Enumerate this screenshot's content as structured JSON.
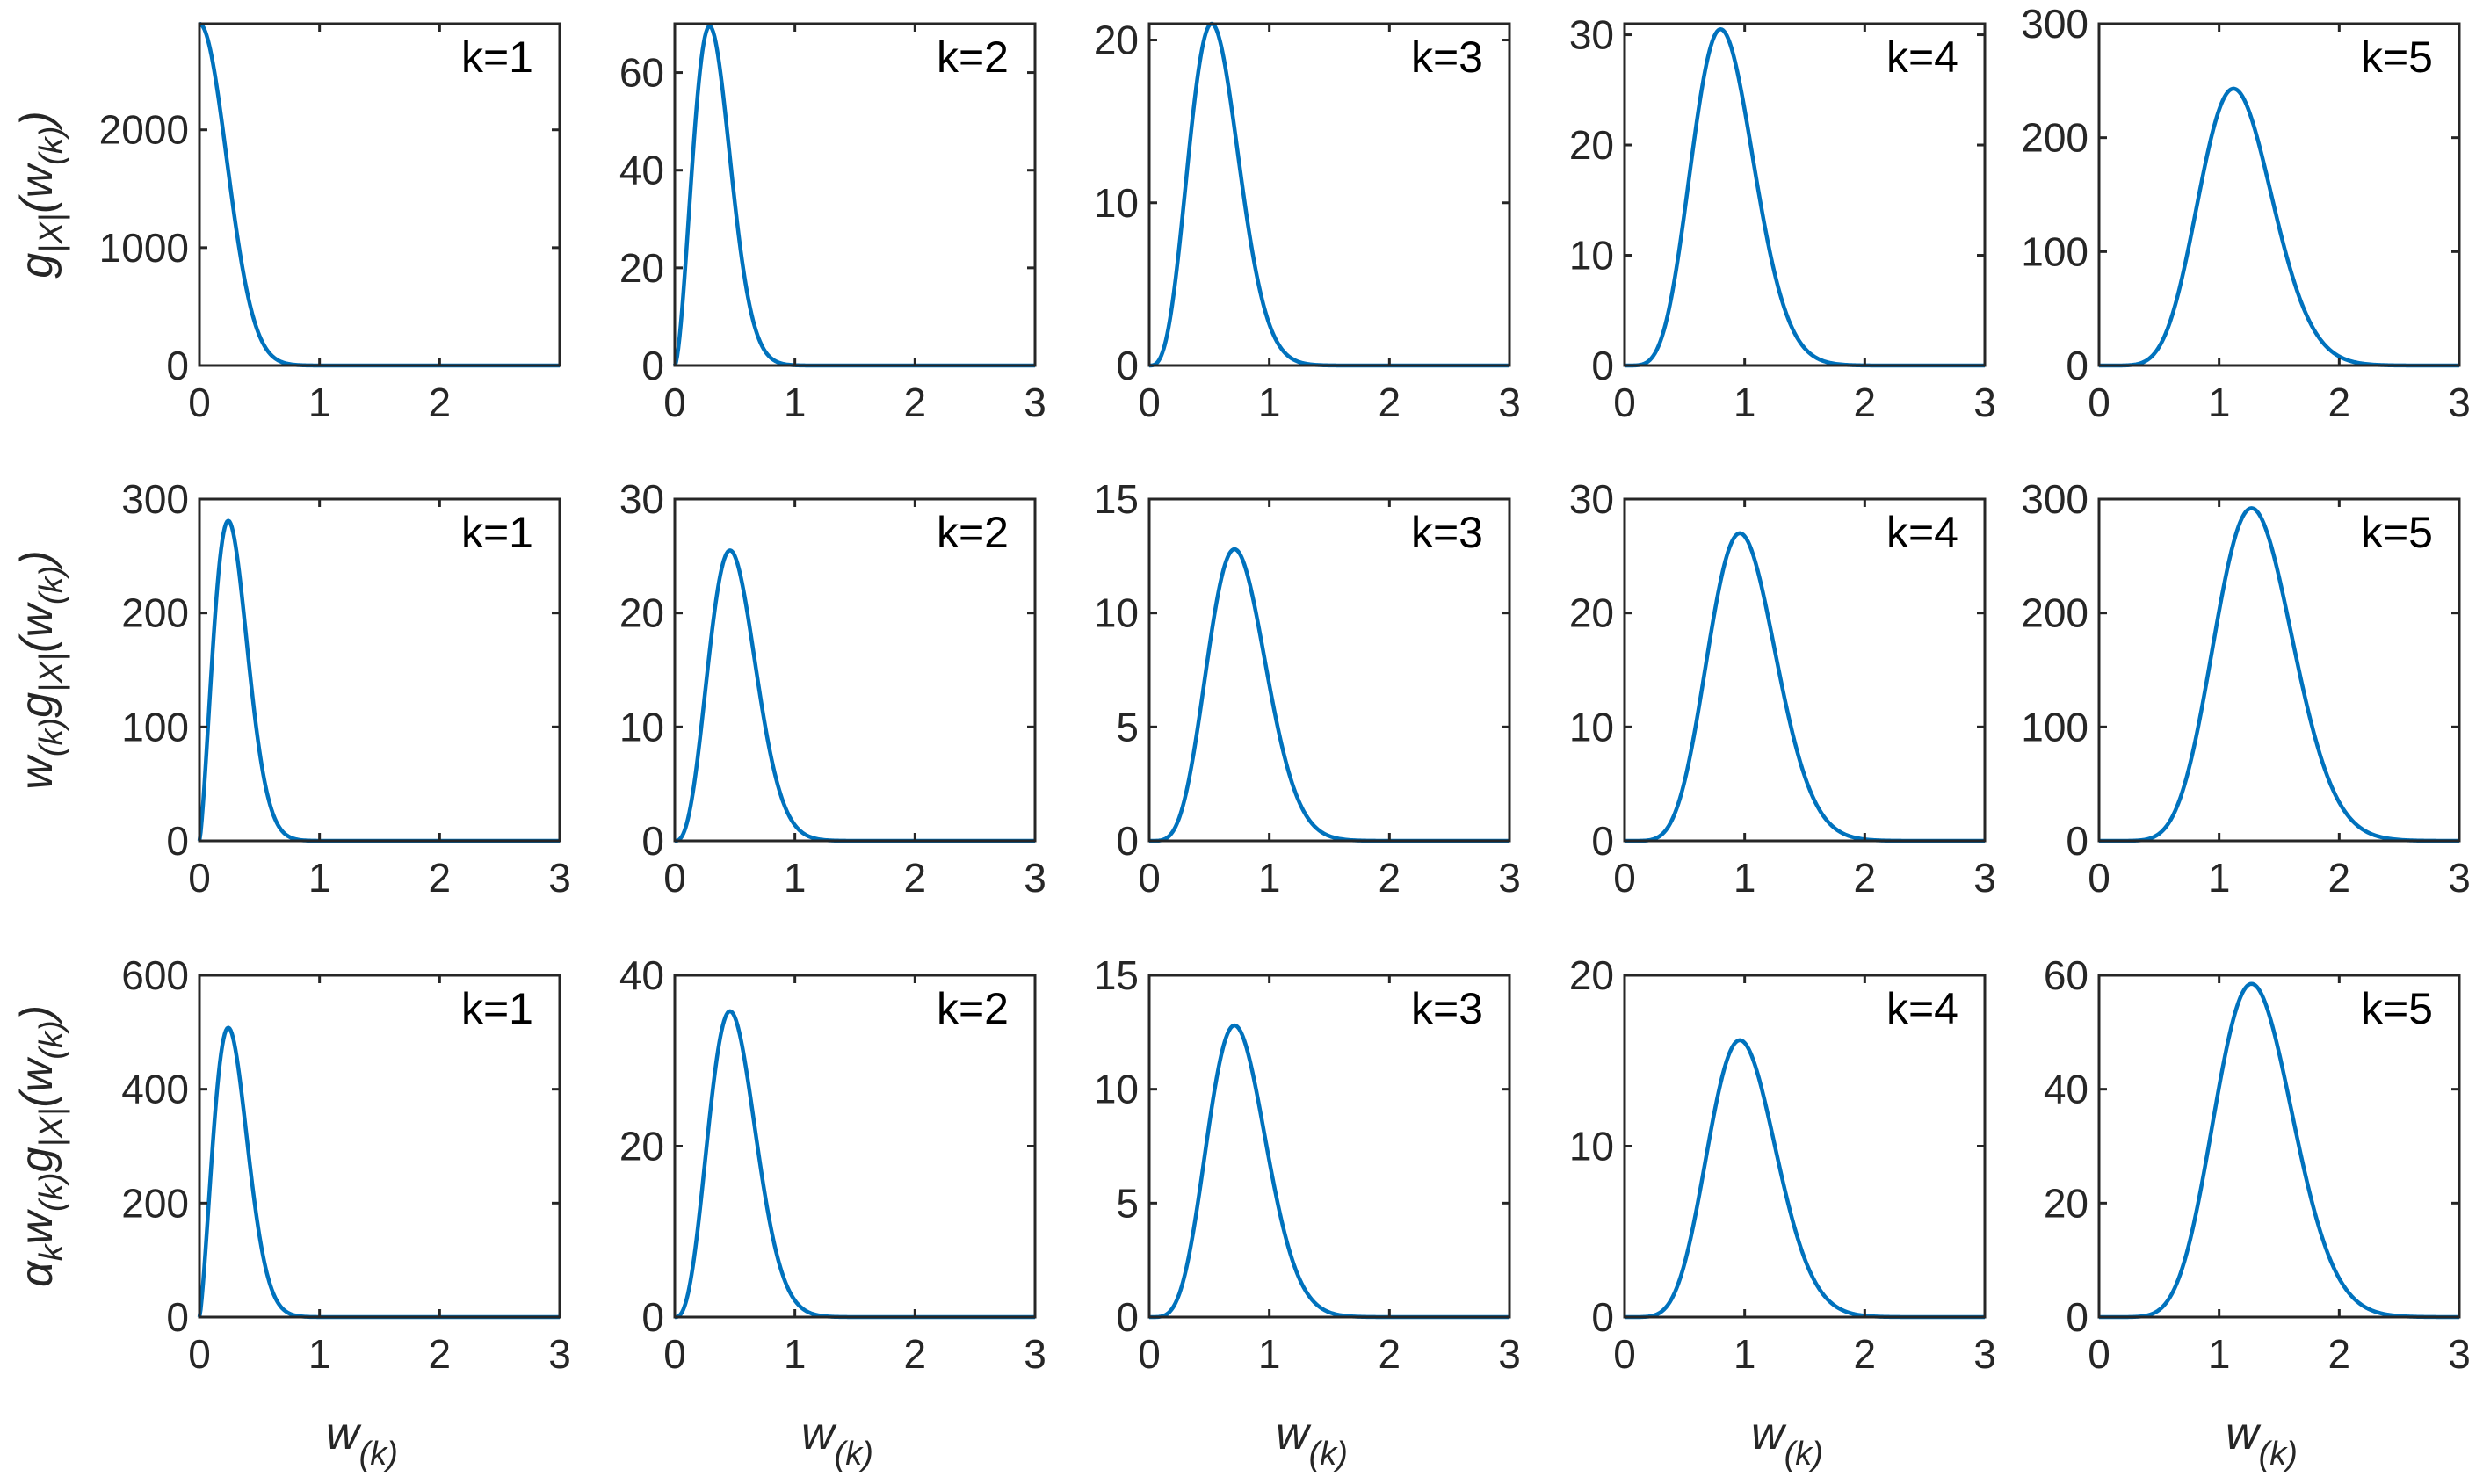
{
  "chart_data": {
    "type": "line",
    "layout": {
      "rows": 3,
      "cols": 5
    },
    "line_color": "#0072BD",
    "x_tick_labels": [
      "0",
      "1",
      "2",
      "3"
    ],
    "x_axis_label": {
      "main": "w",
      "sub": "(k)"
    },
    "rows": [
      {
        "ylabel": {
          "parts": [
            {
              "t": "g",
              "sub": false
            },
            {
              "t": "|X|",
              "sub": true
            },
            {
              "t": "(w",
              "sub": false
            },
            {
              "t": "(k)",
              "sub": true
            },
            {
              "t": ")",
              "sub": false
            }
          ]
        },
        "panels": [
          {
            "label": "k=1",
            "xlim": [
              0,
              3
            ],
            "ylim": [
              0,
              2900
            ],
            "xticks": [
              0,
              1,
              2
            ],
            "yticks": [
              0,
              1000,
              2000
            ],
            "ytick_labels": [
              "0",
              "1000",
              "2000"
            ],
            "peak_x": 0,
            "peak_y": 2900
          },
          {
            "label": "k=2",
            "xlim": [
              0,
              3
            ],
            "ylim": [
              0,
              70
            ],
            "xticks": [
              0,
              1,
              2,
              3
            ],
            "yticks": [
              0,
              20,
              40,
              60
            ],
            "ytick_labels": [
              "0",
              "20",
              "40",
              "60"
            ],
            "peak_x": 0.29,
            "peak_y": 69.5
          },
          {
            "label": "k=3",
            "xlim": [
              0,
              3
            ],
            "ylim": [
              0,
              21
            ],
            "xticks": [
              0,
              1,
              2,
              3
            ],
            "yticks": [
              0,
              10,
              20
            ],
            "ytick_labels": [
              "0",
              "10",
              "20"
            ],
            "peak_x": 0.52,
            "peak_y": 21
          },
          {
            "label": "k=4",
            "xlim": [
              0,
              3
            ],
            "ylim": [
              0,
              31
            ],
            "xticks": [
              0,
              1,
              2,
              3
            ],
            "yticks": [
              0,
              10,
              20,
              30
            ],
            "ytick_labels": [
              "0",
              "10",
              "20",
              "30"
            ],
            "peak_x": 0.8,
            "peak_y": 30.5
          },
          {
            "label": "k=5",
            "xlim": [
              0,
              3
            ],
            "ylim": [
              0,
              300
            ],
            "xticks": [
              0,
              1,
              2,
              3
            ],
            "yticks": [
              0,
              100,
              200,
              300
            ],
            "ytick_labels": [
              "0",
              "100",
              "200",
              "300"
            ],
            "peak_x": 1.12,
            "peak_y": 243
          }
        ]
      },
      {
        "ylabel": {
          "parts": [
            {
              "t": "w",
              "sub": false
            },
            {
              "t": "(k)",
              "sub": true
            },
            {
              "t": "g",
              "sub": false
            },
            {
              "t": "|X|",
              "sub": true
            },
            {
              "t": "(w",
              "sub": false
            },
            {
              "t": "(k)",
              "sub": true
            },
            {
              "t": ")",
              "sub": false
            }
          ]
        },
        "panels": [
          {
            "label": "k=1",
            "xlim": [
              0,
              3
            ],
            "ylim": [
              0,
              300
            ],
            "xticks": [
              0,
              1,
              2,
              3
            ],
            "yticks": [
              0,
              100,
              200,
              300
            ],
            "ytick_labels": [
              "0",
              "100",
              "200",
              "300"
            ],
            "peak_x": 0.24,
            "peak_y": 281
          },
          {
            "label": "k=2",
            "xlim": [
              0,
              3
            ],
            "ylim": [
              0,
              30
            ],
            "xticks": [
              0,
              1,
              2,
              3
            ],
            "yticks": [
              0,
              10,
              20,
              30
            ],
            "ytick_labels": [
              "0",
              "10",
              "20",
              "30"
            ],
            "peak_x": 0.46,
            "peak_y": 25.5
          },
          {
            "label": "k=3",
            "xlim": [
              0,
              3
            ],
            "ylim": [
              0,
              15
            ],
            "xticks": [
              0,
              1,
              2,
              3
            ],
            "yticks": [
              0,
              5,
              10,
              15
            ],
            "ytick_labels": [
              "0",
              "5",
              "10",
              "15"
            ],
            "peak_x": 0.71,
            "peak_y": 12.8
          },
          {
            "label": "k=4",
            "xlim": [
              0,
              3
            ],
            "ylim": [
              0,
              30
            ],
            "xticks": [
              0,
              1,
              2,
              3
            ],
            "yticks": [
              0,
              10,
              20,
              30
            ],
            "ytick_labels": [
              "0",
              "10",
              "20",
              "30"
            ],
            "peak_x": 0.96,
            "peak_y": 27
          },
          {
            "label": "k=5",
            "xlim": [
              0,
              3
            ],
            "ylim": [
              0,
              300
            ],
            "xticks": [
              0,
              1,
              2,
              3
            ],
            "yticks": [
              0,
              100,
              200,
              300
            ],
            "ytick_labels": [
              "0",
              "100",
              "200",
              "300"
            ],
            "peak_x": 1.27,
            "peak_y": 292
          }
        ]
      },
      {
        "ylabel": {
          "parts": [
            {
              "t": "α",
              "sub": false
            },
            {
              "t": "k",
              "sub": true
            },
            {
              "t": "w",
              "sub": false
            },
            {
              "t": "(k)",
              "sub": true
            },
            {
              "t": "g",
              "sub": false
            },
            {
              "t": "|X|",
              "sub": true
            },
            {
              "t": "(w",
              "sub": false
            },
            {
              "t": "(k)",
              "sub": true
            },
            {
              "t": ")",
              "sub": false
            }
          ]
        },
        "panels": [
          {
            "label": "k=1",
            "xlim": [
              0,
              3
            ],
            "ylim": [
              0,
              600
            ],
            "xticks": [
              0,
              1,
              2,
              3
            ],
            "yticks": [
              0,
              200,
              400,
              600
            ],
            "ytick_labels": [
              "0",
              "200",
              "400",
              "600"
            ],
            "peak_x": 0.24,
            "peak_y": 508
          },
          {
            "label": "k=2",
            "xlim": [
              0,
              3
            ],
            "ylim": [
              0,
              40
            ],
            "xticks": [
              0,
              1,
              2,
              3
            ],
            "yticks": [
              0,
              20,
              40
            ],
            "ytick_labels": [
              "0",
              "20",
              "40"
            ],
            "peak_x": 0.46,
            "peak_y": 35.8
          },
          {
            "label": "k=3",
            "xlim": [
              0,
              3
            ],
            "ylim": [
              0,
              15
            ],
            "xticks": [
              0,
              1,
              2,
              3
            ],
            "yticks": [
              0,
              5,
              10,
              15
            ],
            "ytick_labels": [
              "0",
              "5",
              "10",
              "15"
            ],
            "peak_x": 0.71,
            "peak_y": 12.8
          },
          {
            "label": "k=4",
            "xlim": [
              0,
              3
            ],
            "ylim": [
              0,
              20
            ],
            "xticks": [
              0,
              1,
              2,
              3
            ],
            "yticks": [
              0,
              10,
              20
            ],
            "ytick_labels": [
              "0",
              "10",
              "20"
            ],
            "peak_x": 0.96,
            "peak_y": 16.2
          },
          {
            "label": "k=5",
            "xlim": [
              0,
              3
            ],
            "ylim": [
              0,
              60
            ],
            "xticks": [
              0,
              1,
              2,
              3
            ],
            "yticks": [
              0,
              20,
              40,
              60
            ],
            "ytick_labels": [
              "0",
              "20",
              "40",
              "60"
            ],
            "peak_x": 1.27,
            "peak_y": 58.5
          }
        ]
      }
    ]
  }
}
